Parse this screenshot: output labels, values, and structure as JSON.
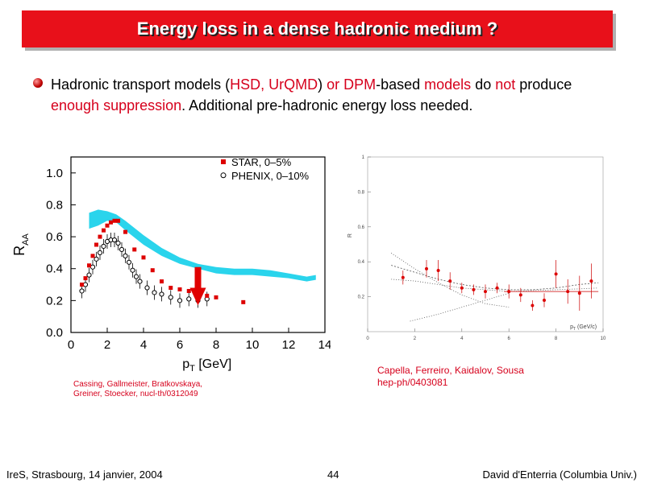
{
  "slide": {
    "title": "Energy loss in a dense hadronic medium ?",
    "bullet": {
      "t1": "Hadronic transport models (",
      "t2": "HSD, UrQMD",
      "t3": ") ",
      "t4": "or DPM",
      "t5": "-based ",
      "t6": "models",
      "t7": " do ",
      "t8": "not",
      "t9": " produce ",
      "t10": "enough suppression",
      "t11": ". Additional pre-hadronic energy loss needed."
    },
    "caption_left": {
      "line1": "Cassing, Gallmeister, Bratkovskaya,",
      "line2": "Greiner, Stoecker, nucl-th/0312049"
    },
    "caption_right": {
      "line1": "Capella, Ferreiro, Kaidalov, Sousa",
      "line2": "hep-ph/0403081"
    },
    "footer": {
      "left": "IreS, Strasbourg, 14 janvier, 2004",
      "page": "44",
      "right": "David d'Enterria (Columbia Univ.)"
    }
  },
  "colors": {
    "accent_red": "#e8101a",
    "band": "#2ad4ec",
    "star": "#dd0000"
  },
  "chart_data": [
    {
      "type": "scatter",
      "xlabel": "p",
      "xlabel_sub": "T",
      "xlabel_unit": " [GeV]",
      "ylabel": "R",
      "ylabel_sub": "AA",
      "xlim": [
        0,
        14
      ],
      "ylim": [
        0,
        1.0
      ],
      "xticks": [
        "0",
        "2",
        "4",
        "6",
        "8",
        "10",
        "12",
        "14"
      ],
      "yticks": [
        "0.0",
        "0.2",
        "0.4",
        "0.6",
        "0.8",
        "1.0"
      ],
      "legend": [
        "STAR, 0–5%",
        "PHENIX, 0–10%"
      ],
      "series": [
        {
          "name": "STAR, 0–5%",
          "x": [
            0.6,
            0.8,
            1.0,
            1.2,
            1.4,
            1.6,
            1.8,
            2.0,
            2.2,
            2.4,
            2.6,
            3.0,
            3.5,
            4.0,
            4.5,
            5.0,
            5.5,
            6.0,
            6.5,
            7.0,
            7.5,
            8.0,
            9.5
          ],
          "y": [
            0.3,
            0.34,
            0.42,
            0.48,
            0.55,
            0.6,
            0.64,
            0.67,
            0.69,
            0.7,
            0.7,
            0.63,
            0.52,
            0.47,
            0.39,
            0.32,
            0.28,
            0.27,
            0.26,
            0.25,
            0.23,
            0.22,
            0.19
          ]
        },
        {
          "name": "PHENIX, 0–10%",
          "x": [
            0.6,
            0.8,
            1.0,
            1.2,
            1.4,
            1.6,
            1.8,
            2.0,
            2.2,
            2.4,
            2.6,
            2.8,
            3.0,
            3.2,
            3.4,
            3.6,
            3.8,
            4.2,
            4.6,
            5.0,
            5.5,
            6.0,
            6.5,
            7.0,
            7.5
          ],
          "y": [
            0.26,
            0.3,
            0.36,
            0.41,
            0.46,
            0.5,
            0.54,
            0.57,
            0.58,
            0.58,
            0.56,
            0.52,
            0.48,
            0.44,
            0.39,
            0.35,
            0.32,
            0.28,
            0.25,
            0.24,
            0.22,
            0.2,
            0.21,
            0.2,
            0.21
          ]
        }
      ],
      "band": {
        "x": [
          1.0,
          1.5,
          2.0,
          2.5,
          3.0,
          4.0,
          5.0,
          6.0,
          7.0,
          8.0,
          9.0,
          10.0,
          11.0,
          12.0,
          13.0,
          13.5
        ],
        "lo": [
          0.65,
          0.67,
          0.7,
          0.69,
          0.64,
          0.55,
          0.48,
          0.43,
          0.4,
          0.37,
          0.36,
          0.36,
          0.35,
          0.34,
          0.32,
          0.33
        ],
        "hi": [
          0.75,
          0.77,
          0.76,
          0.74,
          0.7,
          0.61,
          0.53,
          0.47,
          0.43,
          0.41,
          0.4,
          0.4,
          0.39,
          0.37,
          0.35,
          0.36
        ]
      },
      "arrow_x": 7.0
    },
    {
      "type": "scatter",
      "xlabel": "p",
      "xlabel_sub": "T",
      "xlabel_unit": " (GeV/c)",
      "ylabel": "R",
      "xlim": [
        0,
        10
      ],
      "ylim": [
        0,
        1
      ],
      "xticks": [
        "0",
        "2",
        "4",
        "6",
        "8",
        "10"
      ],
      "yticks": [
        "1",
        "0.8",
        "0.6",
        "0.4",
        "0.2"
      ],
      "series": [
        {
          "x": [
            1.5,
            2.5,
            3.0,
            3.5,
            4.0,
            4.5,
            5.0,
            5.5,
            6.0,
            6.5,
            7.0,
            7.5,
            8.0,
            8.5,
            9.0,
            9.5
          ],
          "y": [
            0.31,
            0.36,
            0.35,
            0.29,
            0.25,
            0.24,
            0.23,
            0.25,
            0.23,
            0.21,
            0.15,
            0.18,
            0.33,
            0.23,
            0.22,
            0.29
          ],
          "err": [
            0.04,
            0.05,
            0.06,
            0.05,
            0.03,
            0.03,
            0.04,
            0.03,
            0.04,
            0.04,
            0.03,
            0.04,
            0.08,
            0.07,
            0.1,
            0.1
          ]
        }
      ]
    }
  ]
}
